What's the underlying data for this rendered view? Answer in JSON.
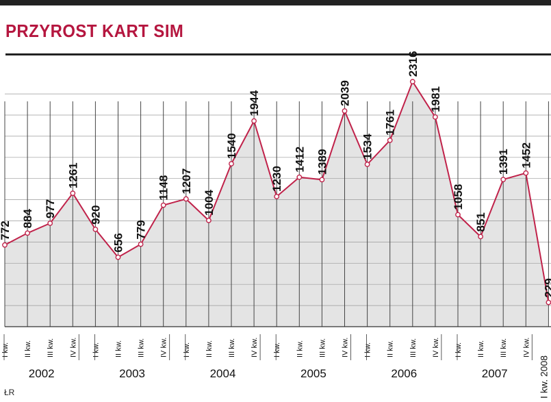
{
  "header": {
    "title": "PRZYROST KART SIM"
  },
  "credit": "ŁR",
  "colors": {
    "line": "#c0224a",
    "fill": "#e4e4e4",
    "grid": "#9a9a9a",
    "text": "#111111",
    "title": "#b5163f",
    "bar": "#222222"
  },
  "chart_data": {
    "type": "area",
    "title": "PRZYROST KART SIM",
    "xlabel": "",
    "ylabel": "",
    "ylim": [
      0,
      2550
    ],
    "grid": true,
    "quarters": [
      "I kw.",
      "II kw.",
      "III kw.",
      "IV kw."
    ],
    "years": [
      "2002",
      "2003",
      "2004",
      "2005",
      "2006",
      "2007"
    ],
    "last_label": "I kw. 2008",
    "values": [
      772,
      884,
      977,
      1261,
      920,
      656,
      779,
      1148,
      1207,
      1004,
      1540,
      1944,
      1230,
      1412,
      1389,
      2039,
      1534,
      1761,
      2316,
      1981,
      1058,
      851,
      1391,
      1452,
      229
    ],
    "value_labels": [
      "772",
      "884",
      "977",
      "1261",
      "920",
      "656",
      "779",
      "1148",
      "1207",
      "1004",
      "1540",
      "1944",
      "1230",
      "1412",
      "1389",
      "2039",
      "1534",
      "1761",
      "2316",
      "1981",
      "1058",
      "851",
      "1391",
      "1452",
      "229"
    ]
  }
}
